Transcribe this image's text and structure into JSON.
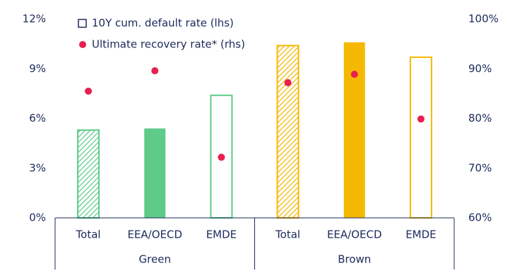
{
  "chart_data": {
    "type": "bar",
    "categories": [
      "Total",
      "EEA/OECD",
      "EMDE",
      "Total",
      "EEA/OECD",
      "EMDE"
    ],
    "groups": [
      "Green",
      "Brown"
    ],
    "series": [
      {
        "name": "10Y cum. default rate (lhs)",
        "type": "bar",
        "axis": "y",
        "values": [
          5.3,
          5.4,
          7.4,
          10.4,
          10.6,
          9.7
        ],
        "colors": [
          "#5ecb89",
          "#5ecb89",
          "#5ecb89",
          "#f5b800",
          "#f5b800",
          "#f5b800"
        ],
        "fills": [
          "hatched",
          "solid",
          "outline",
          "hatched",
          "solid",
          "outline"
        ]
      },
      {
        "name": "Ultimate recovery rate* (rhs)",
        "type": "scatter",
        "axis": "y2",
        "color": "#e8204f",
        "values": [
          85.5,
          89.6,
          72.2,
          87.2,
          88.9,
          79.9
        ]
      }
    ],
    "ylim": [
      0,
      12
    ],
    "yticks": [
      {
        "value": 0,
        "label": "0%"
      },
      {
        "value": 3,
        "label": "3%"
      },
      {
        "value": 6,
        "label": "6%"
      },
      {
        "value": 9,
        "label": "9%"
      },
      {
        "value": 12,
        "label": "12%"
      }
    ],
    "y2lim": [
      60,
      100
    ],
    "y2ticks": [
      {
        "value": 60,
        "label": "60%"
      },
      {
        "value": 70,
        "label": "70%"
      },
      {
        "value": 80,
        "label": "80%"
      },
      {
        "value": 90,
        "label": "90%"
      },
      {
        "value": 100,
        "label": "100%"
      }
    ]
  }
}
